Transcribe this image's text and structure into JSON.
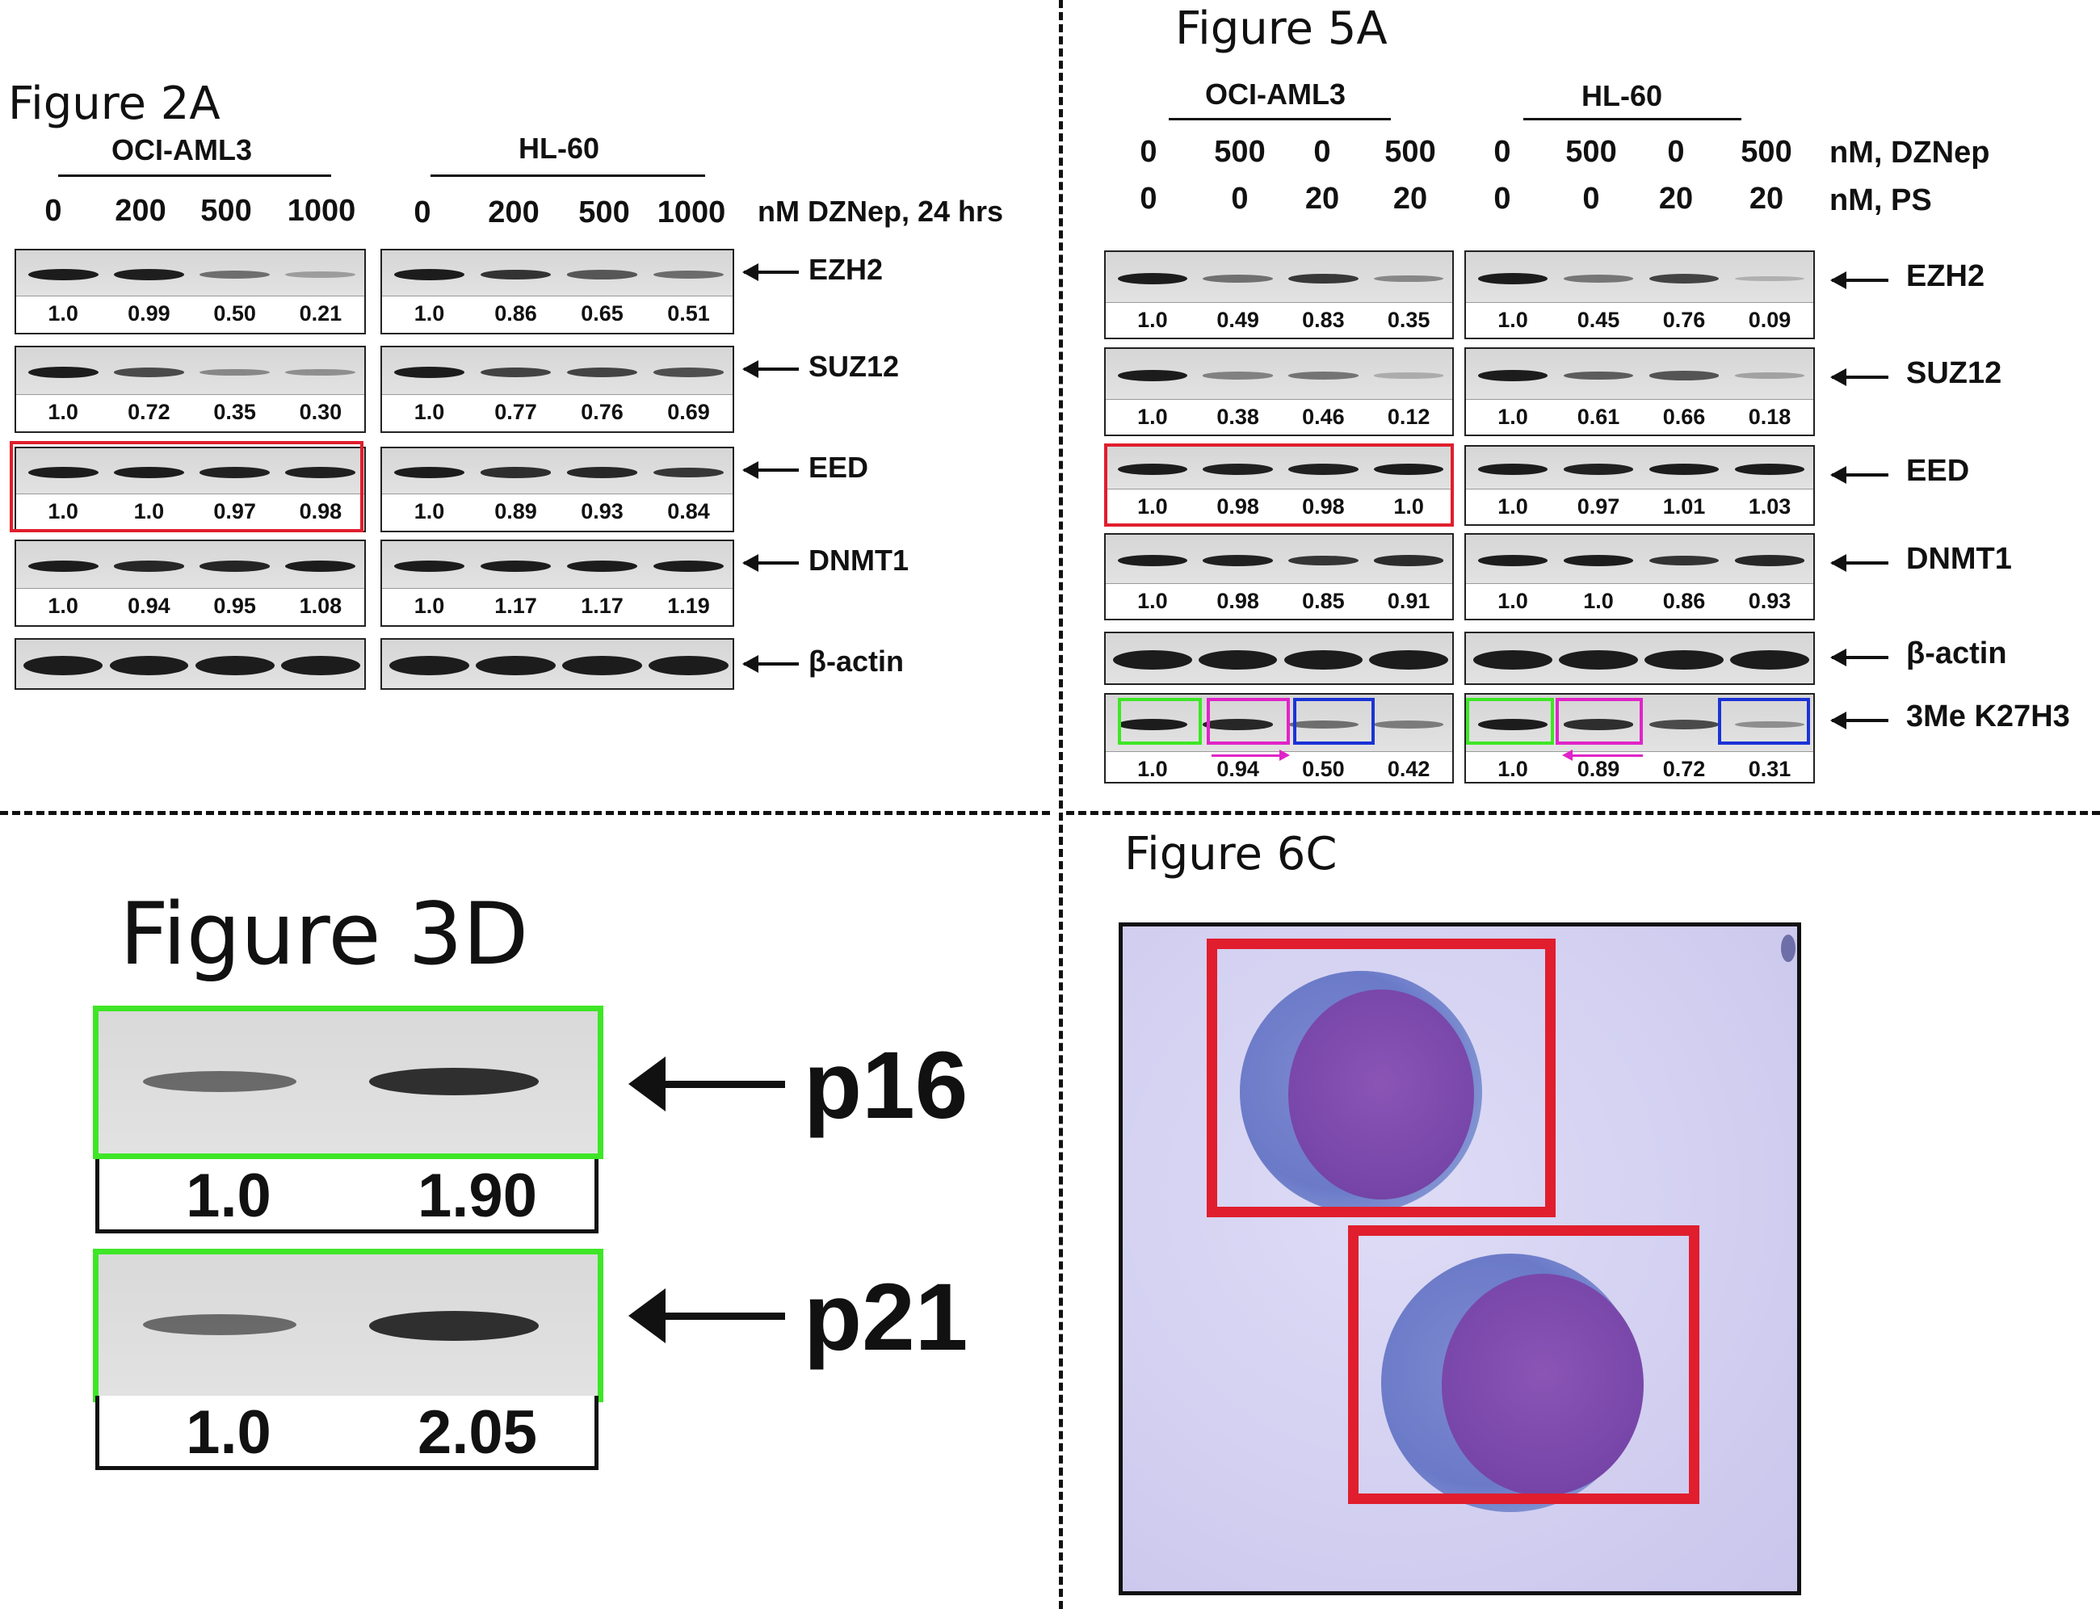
{
  "figure_2a": {
    "title": "Figure 2A",
    "groups": [
      "OCI-AML3",
      "HL-60"
    ],
    "doses": [
      "0",
      "200",
      "500",
      "1000"
    ],
    "dose_unit": "nM DZNep, 24 hrs",
    "proteins": [
      "EZH2",
      "SUZ12",
      "EED",
      "DNMT1",
      "β-actin"
    ],
    "values": {
      "OCI-AML3": [
        [
          "1.0",
          "0.99",
          "0.50",
          "0.21"
        ],
        [
          "1.0",
          "0.72",
          "0.35",
          "0.30"
        ],
        [
          "1.0",
          "1.0",
          "0.97",
          "0.98"
        ],
        [
          "1.0",
          "0.94",
          "0.95",
          "1.08"
        ]
      ],
      "HL-60": [
        [
          "1.0",
          "0.86",
          "0.65",
          "0.51"
        ],
        [
          "1.0",
          "0.77",
          "0.76",
          "0.69"
        ],
        [
          "1.0",
          "0.89",
          "0.93",
          "0.84"
        ],
        [
          "1.0",
          "1.17",
          "1.17",
          "1.19"
        ]
      ]
    }
  },
  "figure_5a": {
    "title": "Figure 5A",
    "groups": [
      "OCI-AML3",
      "HL-60"
    ],
    "dzneP": [
      "0",
      "500",
      "0",
      "500"
    ],
    "ps": [
      "0",
      "0",
      "20",
      "20"
    ],
    "dzneP_unit": "nM, DZNep",
    "ps_unit": "nM, PS",
    "proteins": [
      "EZH2",
      "SUZ12",
      "EED",
      "DNMT1",
      "β-actin",
      "3Me K27H3"
    ],
    "values": {
      "OCI-AML3": [
        [
          "1.0",
          "0.49",
          "0.83",
          "0.35"
        ],
        [
          "1.0",
          "0.38",
          "0.46",
          "0.12"
        ],
        [
          "1.0",
          "0.98",
          "0.98",
          "1.0"
        ],
        [
          "1.0",
          "0.98",
          "0.85",
          "0.91"
        ],
        [
          "1.0",
          "0.94",
          "0.50",
          "0.42"
        ]
      ],
      "HL-60": [
        [
          "1.0",
          "0.45",
          "0.76",
          "0.09"
        ],
        [
          "1.0",
          "0.61",
          "0.66",
          "0.18"
        ],
        [
          "1.0",
          "0.97",
          "1.01",
          "1.03"
        ],
        [
          "1.0",
          "1.0",
          "0.86",
          "0.93"
        ],
        [
          "1.0",
          "0.89",
          "0.72",
          "0.31"
        ]
      ]
    }
  },
  "figure_3d": {
    "title": "Figure 3D",
    "rows": [
      {
        "protein": "p16",
        "values": [
          "1.0",
          "1.90"
        ]
      },
      {
        "protein": "p21",
        "values": [
          "1.0",
          "2.05"
        ]
      }
    ]
  },
  "figure_6c": {
    "title": "Figure 6C"
  },
  "colors": {
    "red": "#e01e2e",
    "green": "#3ee626",
    "magenta": "#e024c8",
    "blue": "#1b33d6"
  }
}
